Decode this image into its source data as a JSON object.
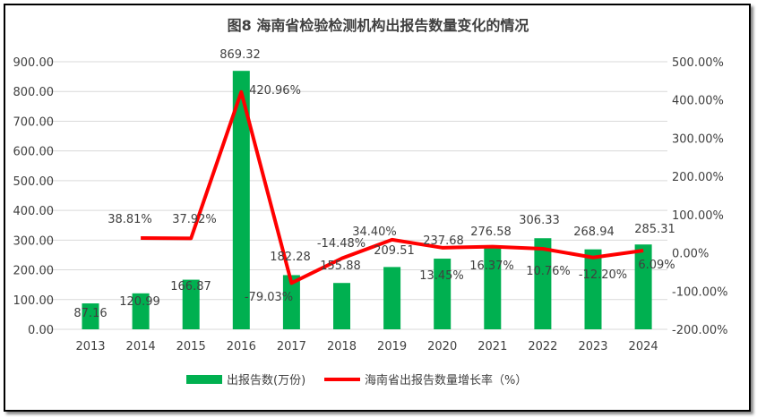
{
  "chart_data": {
    "type": "bar+line",
    "title": "图8 海南省检验检测机构出报告数量变化的情况",
    "categories": [
      "2013",
      "2014",
      "2015",
      "2016",
      "2017",
      "2018",
      "2019",
      "2020",
      "2021",
      "2022",
      "2023",
      "2024"
    ],
    "series": [
      {
        "name": "出报告数(万份)",
        "type": "bar",
        "axis": "left",
        "color": "#00B050",
        "values": [
          87.16,
          120.99,
          166.87,
          869.32,
          182.28,
          155.88,
          209.51,
          237.68,
          276.58,
          306.33,
          268.94,
          285.31
        ],
        "labels": [
          "87.16",
          "120.99",
          "166.87",
          "869.32",
          "182.28",
          "155.88",
          "209.51",
          "237.68",
          "276.58",
          "306.33",
          "268.94",
          "285.31"
        ]
      },
      {
        "name": "海南省出报告数量增长率（%）",
        "type": "line",
        "axis": "right",
        "color": "#FF0000",
        "values": [
          null,
          38.81,
          37.92,
          420.96,
          -79.03,
          -14.48,
          34.4,
          13.45,
          16.37,
          10.76,
          -12.2,
          6.09
        ],
        "labels": [
          "",
          "38.81%",
          "37.92%",
          "420.96%",
          "-79.03%",
          "-14.48%",
          "34.40%",
          "13.45%",
          "16.37%",
          "10.76%",
          "-12.20%",
          "6.09%"
        ]
      }
    ],
    "left_axis": {
      "range": [
        0,
        900
      ],
      "ticks": [
        "0.00",
        "100.00",
        "200.00",
        "300.00",
        "400.00",
        "500.00",
        "600.00",
        "700.00",
        "800.00",
        "900.00"
      ]
    },
    "right_axis": {
      "range": [
        -200,
        500
      ],
      "ticks": [
        "-200.00%",
        "-100.00%",
        "0.00%",
        "100.00%",
        "200.00%",
        "300.00%",
        "400.00%",
        "500.00%"
      ]
    },
    "grid": true,
    "legend_position": "bottom"
  }
}
